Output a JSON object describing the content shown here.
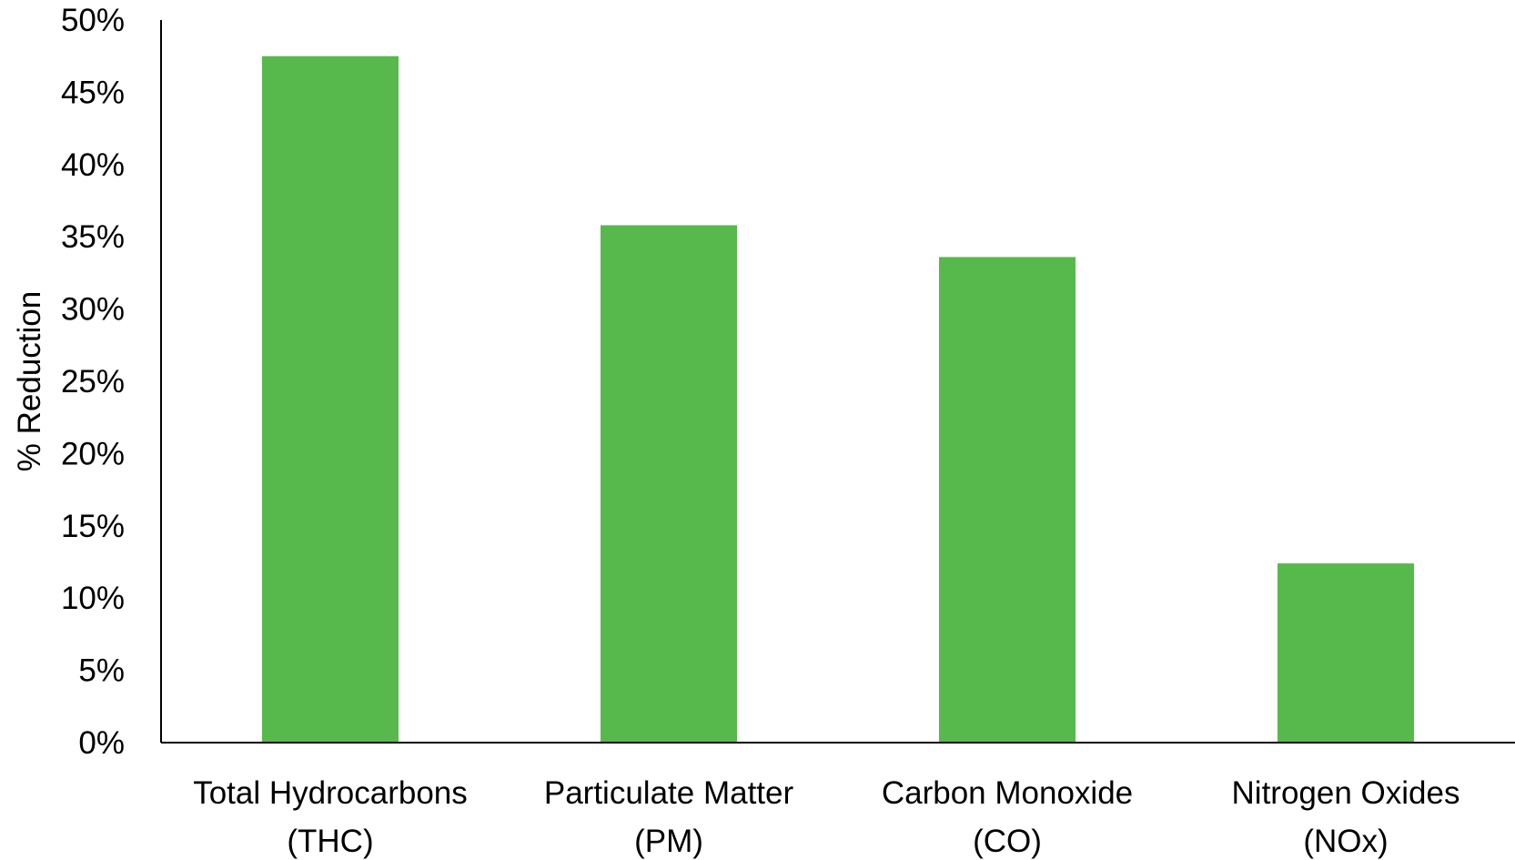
{
  "chart_data": {
    "type": "bar",
    "categories": [
      [
        "Total Hydrocarbons",
        "(THC)"
      ],
      [
        "Particulate Matter",
        "(PM)"
      ],
      [
        "Carbon Monoxide",
        "(CO)"
      ],
      [
        "Nitrogen Oxides",
        "(NOx)"
      ]
    ],
    "values": [
      47.5,
      35.8,
      33.6,
      12.4
    ],
    "ylabel": "% Reduction",
    "ylim": [
      0,
      50
    ],
    "yticks": [
      0,
      5,
      10,
      15,
      20,
      25,
      30,
      35,
      40,
      45,
      50
    ],
    "ytick_labels": [
      "0%",
      "5%",
      "10%",
      "15%",
      "20%",
      "25%",
      "30%",
      "35%",
      "40%",
      "45%",
      "50%"
    ],
    "bar_color": "#57b94c",
    "grid": false,
    "legend": "none"
  }
}
